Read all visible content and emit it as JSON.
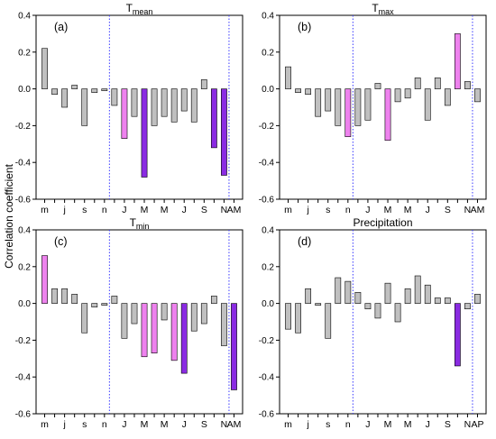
{
  "figure": {
    "ylabel": "Correlation coefficient",
    "colors": {
      "gray": "#c0c0c0",
      "pink": "#ee82ee",
      "purple": "#8a2be2",
      "divider": "#3a3aff",
      "edge": "#000000"
    }
  },
  "chart_data": [
    {
      "type": "bar",
      "panel": "(a)",
      "title_main": "T",
      "title_sub": "mean",
      "ylim": [
        -0.6,
        0.4
      ],
      "yticks": [
        "-0.6",
        "-0.4",
        "-0.2",
        "0.0",
        "0.2",
        "0.4"
      ],
      "tick_labels": [
        "m",
        "j",
        "s",
        "n",
        "J",
        "M",
        "M",
        "J",
        "S",
        "N",
        "AM"
      ],
      "values": [
        0.22,
        -0.03,
        -0.1,
        0.02,
        -0.2,
        -0.02,
        -0.01,
        -0.09,
        -0.27,
        -0.15,
        -0.48,
        -0.2,
        -0.15,
        -0.18,
        -0.12,
        -0.18,
        0.05,
        -0.32,
        -0.47
      ],
      "colors": [
        "gray",
        "gray",
        "gray",
        "gray",
        "gray",
        "gray",
        "gray",
        "gray",
        "pink",
        "gray",
        "purple",
        "gray",
        "gray",
        "gray",
        "gray",
        "gray",
        "gray",
        "purple",
        "purple"
      ]
    },
    {
      "type": "bar",
      "panel": "(b)",
      "title_main": "T",
      "title_sub": "max",
      "ylim": [
        -0.6,
        0.4
      ],
      "yticks": [
        "-0.6",
        "-0.4",
        "-0.2",
        "0.0",
        "0.2",
        "0.4"
      ],
      "tick_labels": [
        "m",
        "j",
        "s",
        "n",
        "J",
        "M",
        "M",
        "J",
        "S",
        "N",
        "AM"
      ],
      "values": [
        0.12,
        -0.02,
        -0.03,
        -0.15,
        -0.12,
        -0.2,
        -0.26,
        -0.2,
        -0.17,
        0.03,
        -0.28,
        -0.07,
        -0.05,
        0.06,
        -0.17,
        0.06,
        -0.09,
        0.3,
        0.04,
        -0.07
      ],
      "colors": [
        "gray",
        "gray",
        "gray",
        "gray",
        "gray",
        "gray",
        "pink",
        "gray",
        "gray",
        "gray",
        "pink",
        "gray",
        "gray",
        "gray",
        "gray",
        "gray",
        "gray",
        "pink",
        "gray",
        "gray"
      ]
    },
    {
      "type": "bar",
      "panel": "(c)",
      "title_main": "T",
      "title_sub": "min",
      "ylim": [
        -0.6,
        0.4
      ],
      "yticks": [
        "-0.6",
        "-0.4",
        "-0.2",
        "0.0",
        "0.2",
        "0.4"
      ],
      "tick_labels": [
        "m",
        "j",
        "s",
        "n",
        "J",
        "M",
        "M",
        "J",
        "S",
        "N",
        "AM"
      ],
      "values": [
        0.26,
        0.08,
        0.08,
        0.05,
        -0.16,
        -0.02,
        -0.01,
        0.04,
        -0.19,
        -0.11,
        -0.29,
        -0.27,
        -0.09,
        -0.31,
        -0.38,
        -0.15,
        -0.11,
        0.04,
        -0.23,
        -0.47
      ],
      "colors": [
        "pink",
        "gray",
        "gray",
        "gray",
        "gray",
        "gray",
        "gray",
        "gray",
        "gray",
        "gray",
        "pink",
        "pink",
        "gray",
        "pink",
        "purple",
        "gray",
        "gray",
        "gray",
        "gray",
        "purple"
      ]
    },
    {
      "type": "bar",
      "panel": "(d)",
      "title_main": "Precipitation",
      "title_sub": "",
      "ylim": [
        -0.6,
        0.4
      ],
      "yticks": [
        "-0.6",
        "-0.4",
        "-0.2",
        "0.0",
        "0.2",
        "0.4"
      ],
      "tick_labels": [
        "m",
        "j",
        "s",
        "n",
        "J",
        "M",
        "M",
        "J",
        "S",
        "N",
        "AP"
      ],
      "values": [
        -0.14,
        -0.16,
        0.08,
        -0.01,
        -0.19,
        0.14,
        0.12,
        0.06,
        -0.03,
        -0.08,
        0.11,
        -0.1,
        0.08,
        0.15,
        0.1,
        0.03,
        0.03,
        -0.34,
        -0.03,
        0.05
      ],
      "colors": [
        "gray",
        "gray",
        "gray",
        "gray",
        "gray",
        "gray",
        "gray",
        "gray",
        "gray",
        "gray",
        "gray",
        "gray",
        "gray",
        "gray",
        "gray",
        "gray",
        "gray",
        "purple",
        "gray",
        "gray"
      ]
    }
  ]
}
